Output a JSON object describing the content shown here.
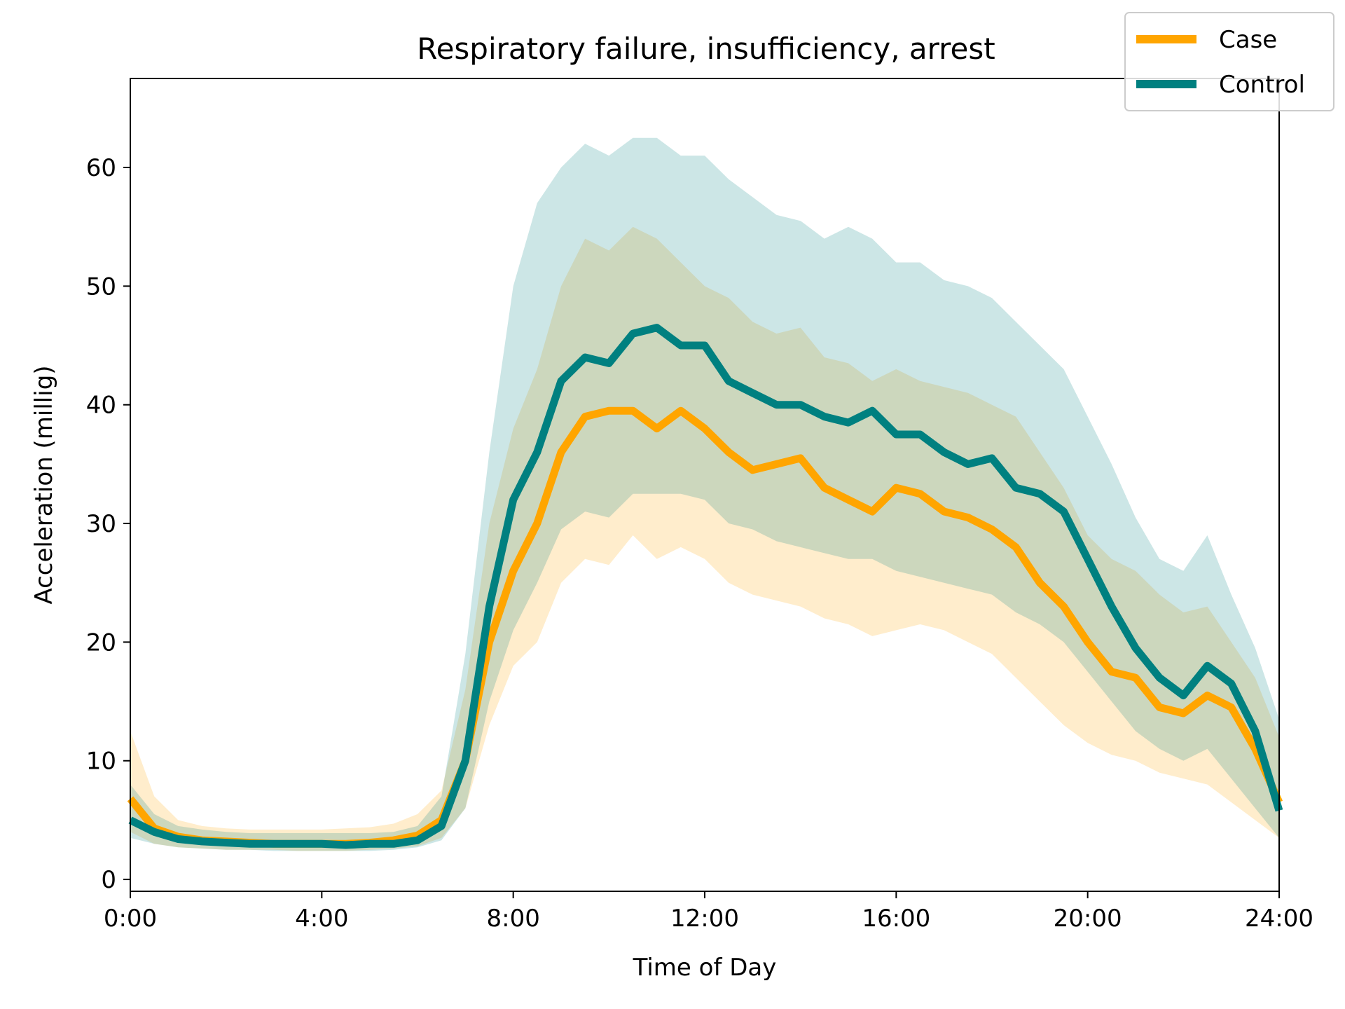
{
  "chart_data": {
    "type": "line",
    "title": "Respiratory failure, insufficiency, arrest",
    "xlabel": "Time of Day",
    "ylabel": "Acceleration (millig)",
    "xlim": [
      0,
      24
    ],
    "ylim": [
      -1,
      67.5
    ],
    "grid": false,
    "legend_position": "top-right",
    "x_ticks": [
      0,
      4,
      8,
      12,
      16,
      20,
      24
    ],
    "x_tick_labels": [
      "0:00",
      "4:00",
      "8:00",
      "12:00",
      "16:00",
      "20:00",
      "24:00"
    ],
    "y_ticks": [
      0,
      10,
      20,
      30,
      40,
      50,
      60
    ],
    "y_tick_labels": [
      "0",
      "10",
      "20",
      "30",
      "40",
      "50",
      "60"
    ],
    "x": [
      0,
      0.5,
      1,
      1.5,
      2,
      2.5,
      3,
      3.5,
      4,
      4.5,
      5,
      5.5,
      6,
      6.5,
      7,
      7.5,
      8,
      8.5,
      9,
      9.5,
      10,
      10.5,
      11,
      11.5,
      12,
      12.5,
      13,
      13.5,
      14,
      14.5,
      15,
      15.5,
      16,
      16.5,
      17,
      17.5,
      18,
      18.5,
      19,
      19.5,
      20,
      20.5,
      21,
      21.5,
      22,
      22.5,
      23,
      23.5,
      24
    ],
    "series": [
      {
        "name": "Case",
        "color": "#FFA500",
        "values": [
          6.8,
          4.3,
          3.6,
          3.3,
          3.2,
          3.1,
          3.0,
          3.0,
          3.0,
          3.0,
          3.1,
          3.3,
          3.7,
          5.0,
          10.0,
          20.0,
          26.0,
          30.0,
          36.0,
          39.0,
          39.5,
          39.5,
          38.0,
          39.5,
          38.0,
          36.0,
          34.5,
          35.0,
          35.5,
          33.0,
          32.0,
          31.0,
          33.0,
          32.5,
          31.0,
          30.5,
          29.5,
          28.0,
          25.0,
          23.0,
          20.0,
          17.5,
          17.0,
          14.5,
          14.0,
          15.5,
          14.5,
          11.0,
          6.5
        ],
        "lower": [
          4.0,
          3.0,
          2.7,
          2.6,
          2.5,
          2.5,
          2.5,
          2.4,
          2.4,
          2.4,
          2.5,
          2.6,
          2.8,
          3.5,
          6.0,
          13.0,
          18.0,
          20.0,
          25.0,
          27.0,
          26.5,
          29.0,
          27.0,
          28.0,
          27.0,
          25.0,
          24.0,
          23.5,
          23.0,
          22.0,
          21.5,
          20.5,
          21.0,
          21.5,
          21.0,
          20.0,
          19.0,
          17.0,
          15.0,
          13.0,
          11.5,
          10.5,
          10.0,
          9.0,
          8.5,
          8.0,
          6.5,
          5.0,
          3.5
        ],
        "upper": [
          12.5,
          7.0,
          5.0,
          4.5,
          4.3,
          4.2,
          4.2,
          4.2,
          4.2,
          4.3,
          4.4,
          4.7,
          5.5,
          7.5,
          16.0,
          30.0,
          38.0,
          43.0,
          50.0,
          54.0,
          53.0,
          55.0,
          54.0,
          52.0,
          50.0,
          49.0,
          47.0,
          46.0,
          46.5,
          44.0,
          43.5,
          42.0,
          43.0,
          42.0,
          41.5,
          41.0,
          40.0,
          39.0,
          36.0,
          33.0,
          29.0,
          27.0,
          26.0,
          24.0,
          22.5,
          23.0,
          20.0,
          17.0,
          12.0
        ]
      },
      {
        "name": "Control",
        "color": "#008080",
        "values": [
          5.0,
          4.0,
          3.4,
          3.2,
          3.1,
          3.0,
          3.0,
          3.0,
          3.0,
          2.9,
          3.0,
          3.0,
          3.3,
          4.5,
          10.0,
          23.0,
          32.0,
          36.0,
          42.0,
          44.0,
          43.5,
          46.0,
          46.5,
          45.0,
          45.0,
          42.0,
          41.0,
          40.0,
          40.0,
          39.0,
          38.5,
          39.5,
          37.5,
          37.5,
          36.0,
          35.0,
          35.5,
          33.0,
          32.5,
          31.0,
          27.0,
          23.0,
          19.5,
          17.0,
          15.5,
          18.0,
          16.5,
          12.5,
          5.8
        ],
        "lower": [
          3.5,
          3.0,
          2.7,
          2.6,
          2.5,
          2.5,
          2.4,
          2.4,
          2.4,
          2.4,
          2.4,
          2.5,
          2.7,
          3.3,
          6.0,
          15.0,
          21.0,
          25.0,
          29.5,
          31.0,
          30.5,
          32.5,
          32.5,
          32.5,
          32.0,
          30.0,
          29.5,
          28.5,
          28.0,
          27.5,
          27.0,
          27.0,
          26.0,
          25.5,
          25.0,
          24.5,
          24.0,
          22.5,
          21.5,
          20.0,
          17.5,
          15.0,
          12.5,
          11.0,
          10.0,
          11.0,
          8.5,
          6.0,
          3.5
        ],
        "upper": [
          8.0,
          5.5,
          4.5,
          4.2,
          4.0,
          3.9,
          3.9,
          3.9,
          3.9,
          3.9,
          3.9,
          4.0,
          4.5,
          7.0,
          19.0,
          36.0,
          50.0,
          57.0,
          60.0,
          62.0,
          61.0,
          62.5,
          62.5,
          61.0,
          61.0,
          59.0,
          57.5,
          56.0,
          55.5,
          54.0,
          55.0,
          54.0,
          52.0,
          52.0,
          50.5,
          50.0,
          49.0,
          47.0,
          45.0,
          43.0,
          39.0,
          35.0,
          30.5,
          27.0,
          26.0,
          29.0,
          24.0,
          19.5,
          13.5
        ]
      }
    ]
  }
}
